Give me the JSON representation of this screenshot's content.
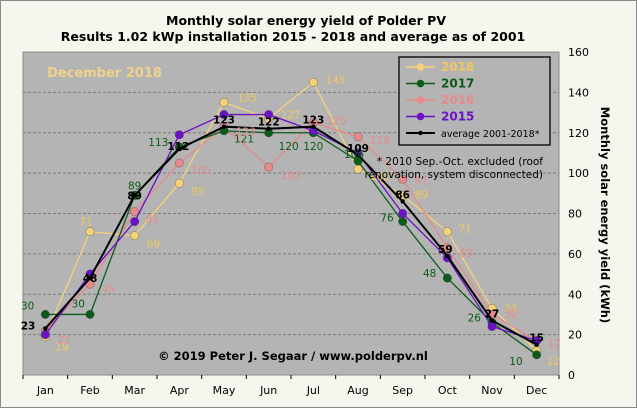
{
  "chart_data": {
    "type": "line",
    "title": "Monthly solar energy yield of Polder PV",
    "subtitle": "Results 1.02 kWp installation 2015 - 2018 and average as of 2001",
    "ylabel": "Monthly solar energy yield (kWh)",
    "ylim": [
      0,
      160
    ],
    "yticks": [
      0,
      20,
      40,
      60,
      80,
      100,
      120,
      140,
      160
    ],
    "grid": true,
    "categories": [
      "Jan",
      "Feb",
      "Mar",
      "Apr",
      "May",
      "Jun",
      "Jul",
      "Aug",
      "Sep",
      "Oct",
      "Nov",
      "Dec"
    ],
    "month_tag": "December 2018",
    "note": "* 2010 Sep.-Oct. excluded (roof renovation, system disconnected)",
    "note_lines": [
      "* 2010 Sep.-Oct. excluded (roof",
      "renovation, system disconnected)"
    ],
    "copyright": "© 2019 Peter J. Segaar / www.polderpv.nl",
    "legend_position": "top-right",
    "series": [
      {
        "name": "2018",
        "color": "#f5d278",
        "label_color": "#f0c75f",
        "marker": "circle",
        "values": [
          19,
          71,
          69,
          95,
          135,
          127,
          145,
          102,
          89,
          71,
          33,
          12
        ]
      },
      {
        "name": "2017",
        "color": "#0b5c1a",
        "label_color": "#0b5c1a",
        "marker": "circle",
        "values": [
          30,
          30,
          89,
          113,
          121,
          120,
          120,
          106,
          76,
          48,
          26,
          10
        ]
      },
      {
        "name": "2016",
        "color": "#e98a8a",
        "label_color": "#e98a8a",
        "marker": "circle",
        "values": [
          22,
          45,
          81,
          105,
          123,
          103,
          125,
          118,
          97,
          63,
          30,
          17
        ]
      },
      {
        "name": "2015",
        "color": "#6a12c4",
        "label_color": "#6a12c4",
        "marker": "circle",
        "values": [
          20,
          50,
          76,
          119,
          129,
          129,
          121,
          110,
          80,
          58,
          24,
          17
        ]
      },
      {
        "name": "average 2001-2018*",
        "color": "#000000",
        "label_color": "#000000",
        "marker": "dot",
        "values": [
          23,
          48,
          89,
          112,
          123,
          122,
          123,
          109,
          86,
          59,
          27,
          15
        ]
      }
    ]
  }
}
